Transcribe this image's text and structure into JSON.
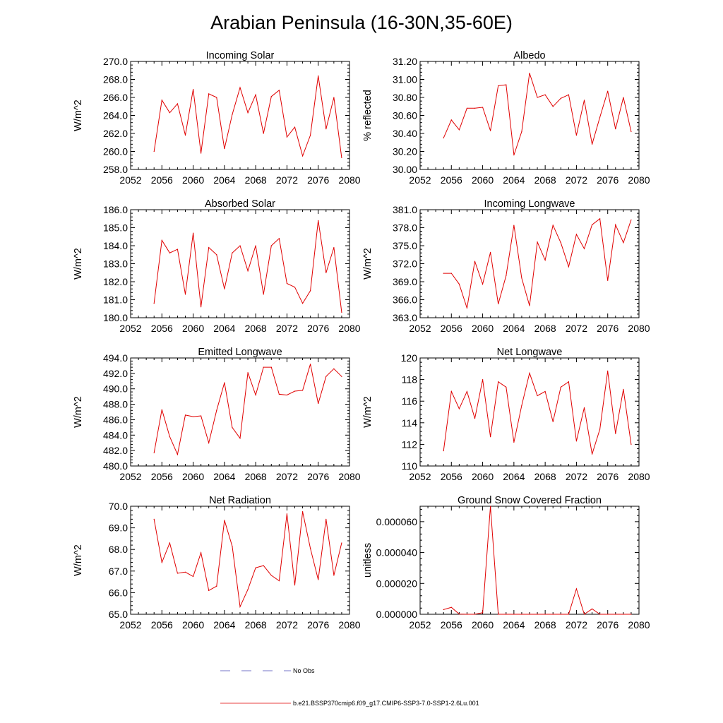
{
  "figure_title": "Arabian Peninsula (16-30N,35-60E)",
  "legend": {
    "entries": [
      {
        "label": "No Obs",
        "color": "#4a4ab8",
        "style": "dashed"
      },
      {
        "label": "b.e21.BSSP370cmip6.f09_g17.CMIP6-SSP3-7.0-SSP1-2.6Lu.001",
        "color": "#e00000",
        "style": "solid"
      }
    ]
  },
  "chart_data": [
    {
      "type": "line",
      "title": "Incoming Solar",
      "ylabel": "W/m^2",
      "xlim": [
        2052,
        2080
      ],
      "ylim": [
        258,
        270
      ],
      "x_ticks": [
        "2052",
        "2056",
        "2060",
        "2064",
        "2068",
        "2072",
        "2076",
        "2080"
      ],
      "y_ticks": [
        "258.0",
        "260.0",
        "262.0",
        "264.0",
        "266.0",
        "268.0",
        "270.0"
      ],
      "series": [
        {
          "color": "#e00000",
          "x": [
            2055,
            2056,
            2057,
            2058,
            2059,
            2060,
            2061,
            2062,
            2063,
            2064,
            2065,
            2066,
            2067,
            2068,
            2069,
            2070,
            2071,
            2072,
            2073,
            2074,
            2075,
            2076,
            2077,
            2078,
            2079
          ],
          "values": [
            260.0,
            265.7,
            264.3,
            265.3,
            261.8,
            266.9,
            259.8,
            266.4,
            266.0,
            260.3,
            264.1,
            267.1,
            264.3,
            266.3,
            262.0,
            266.1,
            266.8,
            261.6,
            262.7,
            259.5,
            261.8,
            268.4,
            262.5,
            266.0,
            259.3
          ]
        }
      ]
    },
    {
      "type": "line",
      "title": "Albedo",
      "ylabel": "% reflected",
      "xlim": [
        2052,
        2080
      ],
      "ylim": [
        30.0,
        31.2
      ],
      "x_ticks": [
        "2052",
        "2056",
        "2060",
        "2064",
        "2068",
        "2072",
        "2076",
        "2080"
      ],
      "y_ticks": [
        "30.00",
        "30.20",
        "30.40",
        "30.60",
        "30.80",
        "31.00",
        "31.20"
      ],
      "series": [
        {
          "color": "#e00000",
          "x": [
            2055,
            2056,
            2057,
            2058,
            2059,
            2060,
            2061,
            2062,
            2063,
            2064,
            2065,
            2066,
            2067,
            2068,
            2069,
            2070,
            2071,
            2072,
            2073,
            2074,
            2075,
            2076,
            2077,
            2078,
            2079
          ],
          "values": [
            30.35,
            30.55,
            30.44,
            30.68,
            30.68,
            30.69,
            30.43,
            30.93,
            30.94,
            30.16,
            30.42,
            31.07,
            30.8,
            30.83,
            30.7,
            30.79,
            30.83,
            30.38,
            30.77,
            30.28,
            30.58,
            30.87,
            30.45,
            30.8,
            30.42
          ]
        }
      ]
    },
    {
      "type": "line",
      "title": "Absorbed Solar",
      "ylabel": "W/m^2",
      "xlim": [
        2052,
        2080
      ],
      "ylim": [
        180,
        186
      ],
      "x_ticks": [
        "2052",
        "2056",
        "2060",
        "2064",
        "2068",
        "2072",
        "2076",
        "2080"
      ],
      "y_ticks": [
        "180.0",
        "181.0",
        "182.0",
        "183.0",
        "184.0",
        "185.0",
        "186.0"
      ],
      "series": [
        {
          "color": "#e00000",
          "x": [
            2055,
            2056,
            2057,
            2058,
            2059,
            2060,
            2061,
            2062,
            2063,
            2064,
            2065,
            2066,
            2067,
            2068,
            2069,
            2070,
            2071,
            2072,
            2073,
            2074,
            2075,
            2076,
            2077,
            2078,
            2079
          ],
          "values": [
            180.8,
            184.3,
            183.6,
            183.8,
            181.3,
            184.7,
            180.6,
            183.9,
            183.5,
            181.6,
            183.6,
            184.0,
            182.6,
            184.0,
            181.3,
            184.0,
            184.4,
            181.9,
            181.7,
            180.8,
            181.5,
            185.4,
            182.5,
            183.9,
            180.3
          ]
        }
      ]
    },
    {
      "type": "line",
      "title": "Incoming Longwave",
      "ylabel": "W/m^2",
      "xlim": [
        2052,
        2080
      ],
      "ylim": [
        363,
        381
      ],
      "x_ticks": [
        "2052",
        "2056",
        "2060",
        "2064",
        "2068",
        "2072",
        "2076",
        "2080"
      ],
      "y_ticks": [
        "363.0",
        "366.0",
        "369.0",
        "372.0",
        "375.0",
        "378.0",
        "381.0"
      ],
      "series": [
        {
          "color": "#e00000",
          "x": [
            2055,
            2056,
            2057,
            2058,
            2059,
            2060,
            2061,
            2062,
            2063,
            2064,
            2065,
            2066,
            2067,
            2068,
            2069,
            2070,
            2071,
            2072,
            2073,
            2074,
            2075,
            2076,
            2077,
            2078,
            2079
          ],
          "values": [
            370.4,
            370.4,
            368.6,
            364.6,
            372.4,
            368.6,
            373.9,
            365.3,
            370.0,
            378.4,
            369.6,
            365.0,
            375.6,
            372.6,
            378.4,
            375.5,
            371.5,
            376.9,
            374.5,
            378.5,
            379.5,
            369.2,
            378.5,
            375.5,
            379.3
          ]
        }
      ]
    },
    {
      "type": "line",
      "title": "Emitted Longwave",
      "ylabel": "W/m^2",
      "xlim": [
        2052,
        2080
      ],
      "ylim": [
        480,
        494
      ],
      "x_ticks": [
        "2052",
        "2056",
        "2060",
        "2064",
        "2068",
        "2072",
        "2076",
        "2080"
      ],
      "y_ticks": [
        "480.0",
        "482.0",
        "484.0",
        "486.0",
        "488.0",
        "490.0",
        "492.0",
        "494.0"
      ],
      "series": [
        {
          "color": "#e00000",
          "x": [
            2055,
            2056,
            2057,
            2058,
            2059,
            2060,
            2061,
            2062,
            2063,
            2064,
            2065,
            2066,
            2067,
            2068,
            2069,
            2070,
            2071,
            2072,
            2073,
            2074,
            2075,
            2076,
            2077,
            2078,
            2079
          ],
          "values": [
            481.7,
            487.3,
            483.8,
            481.5,
            486.6,
            486.4,
            486.5,
            483.0,
            487.2,
            490.8,
            485.0,
            483.6,
            492.1,
            489.2,
            492.8,
            492.8,
            489.3,
            489.2,
            489.7,
            489.8,
            493.2,
            488.1,
            491.6,
            492.6,
            491.6
          ]
        }
      ]
    },
    {
      "type": "line",
      "title": "Net Longwave",
      "ylabel": "W/m^2",
      "xlim": [
        2052,
        2080
      ],
      "ylim": [
        110,
        120
      ],
      "x_ticks": [
        "2052",
        "2056",
        "2060",
        "2064",
        "2068",
        "2072",
        "2076",
        "2080"
      ],
      "y_ticks": [
        "110",
        "112",
        "114",
        "116",
        "118",
        "120"
      ],
      "series": [
        {
          "color": "#e00000",
          "x": [
            2055,
            2056,
            2057,
            2058,
            2059,
            2060,
            2061,
            2062,
            2063,
            2064,
            2065,
            2066,
            2067,
            2068,
            2069,
            2070,
            2071,
            2072,
            2073,
            2074,
            2075,
            2076,
            2077,
            2078,
            2079
          ],
          "values": [
            111.4,
            116.9,
            115.3,
            116.9,
            114.4,
            118.0,
            112.7,
            117.8,
            117.3,
            112.2,
            115.6,
            118.6,
            116.5,
            116.9,
            114.1,
            117.3,
            117.8,
            112.3,
            115.4,
            111.1,
            113.4,
            118.8,
            113.0,
            117.1,
            112.0
          ]
        }
      ]
    },
    {
      "type": "line",
      "title": "Net Radiation",
      "ylabel": "W/m^2",
      "xlim": [
        2052,
        2080
      ],
      "ylim": [
        65,
        70
      ],
      "x_ticks": [
        "2052",
        "2056",
        "2060",
        "2064",
        "2068",
        "2072",
        "2076",
        "2080"
      ],
      "y_ticks": [
        "65.0",
        "66.0",
        "67.0",
        "68.0",
        "69.0",
        "70.0"
      ],
      "series": [
        {
          "color": "#e00000",
          "x": [
            2055,
            2056,
            2057,
            2058,
            2059,
            2060,
            2061,
            2062,
            2063,
            2064,
            2065,
            2066,
            2067,
            2068,
            2069,
            2070,
            2071,
            2072,
            2073,
            2074,
            2075,
            2076,
            2077,
            2078,
            2079
          ],
          "values": [
            69.4,
            67.4,
            68.3,
            66.9,
            66.95,
            66.75,
            67.85,
            66.1,
            66.3,
            69.35,
            68.15,
            65.35,
            66.15,
            67.15,
            67.25,
            66.8,
            66.55,
            69.65,
            66.35,
            69.75,
            68.05,
            66.6,
            69.4,
            66.8,
            68.3
          ]
        }
      ]
    },
    {
      "type": "line",
      "title": "Ground Snow Covered Fraction",
      "ylabel": "unitless",
      "xlim": [
        2052,
        2080
      ],
      "ylim": [
        0,
        7e-05
      ],
      "x_ticks": [
        "2052",
        "2056",
        "2060",
        "2064",
        "2068",
        "2072",
        "2076",
        "2080"
      ],
      "y_ticks": [
        "0.000000",
        "0.000020",
        "0.000040",
        "0.000060"
      ],
      "series": [
        {
          "color": "#e00000",
          "x": [
            2055,
            2056,
            2057,
            2058,
            2059,
            2060,
            2061,
            2062,
            2063,
            2064,
            2065,
            2066,
            2067,
            2068,
            2069,
            2070,
            2071,
            2072,
            2073,
            2074,
            2075,
            2076,
            2077,
            2078,
            2079
          ],
          "values": [
            3e-06,
            4.5e-06,
            1e-07,
            0,
            0,
            1e-06,
            7e-05,
            0,
            0,
            0,
            0,
            0,
            0,
            0,
            0,
            0,
            0,
            1.65e-05,
            0,
            3.5e-06,
            0,
            0,
            0,
            0,
            0
          ]
        }
      ]
    }
  ]
}
